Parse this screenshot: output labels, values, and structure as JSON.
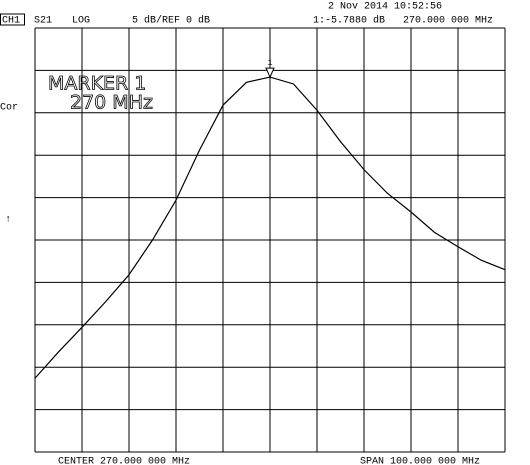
{
  "header": {
    "channel": "CH1",
    "parameter": "S21",
    "format": "LOG",
    "scale": "5 dB/REF 0 dB",
    "datetime": "2 Nov 2014  10:52:56",
    "side_label": "Cor",
    "side_arrow": "↑"
  },
  "footer": {
    "center": "CENTER 270.000 000 MHz",
    "span": "SPAN 100.000 000 MHz"
  },
  "chart_data": {
    "type": "line",
    "x": [
      220,
      225,
      230,
      235,
      240,
      245,
      250,
      255,
      260,
      265,
      270,
      275,
      280,
      285,
      290,
      295,
      300,
      305,
      310,
      315,
      320
    ],
    "values": [
      -41.3,
      -38.2,
      -35.3,
      -32.3,
      -29.1,
      -25.0,
      -20.3,
      -14.4,
      -9.1,
      -6.4,
      -5.79,
      -6.6,
      -9.7,
      -13.4,
      -16.7,
      -19.5,
      -21.7,
      -24.1,
      -25.8,
      -27.4,
      -28.5
    ],
    "color": "#000000",
    "xlim": [
      220,
      320
    ],
    "xticks": [
      220,
      230,
      240,
      250,
      260,
      270,
      280,
      290,
      300,
      310,
      320
    ],
    "ylim": [
      -50,
      0
    ],
    "yticks": [
      -50,
      -45,
      -40,
      -35,
      -30,
      -25,
      -20,
      -15,
      -10,
      -5,
      0
    ],
    "grid": true,
    "marker": {
      "name": "1",
      "x": 270,
      "value": -5.788,
      "value_label": "1:-5.7880 dB",
      "x_label": "270.000 000 MHz",
      "title": "MARKER 1",
      "subtitle": "270 MHz"
    }
  }
}
